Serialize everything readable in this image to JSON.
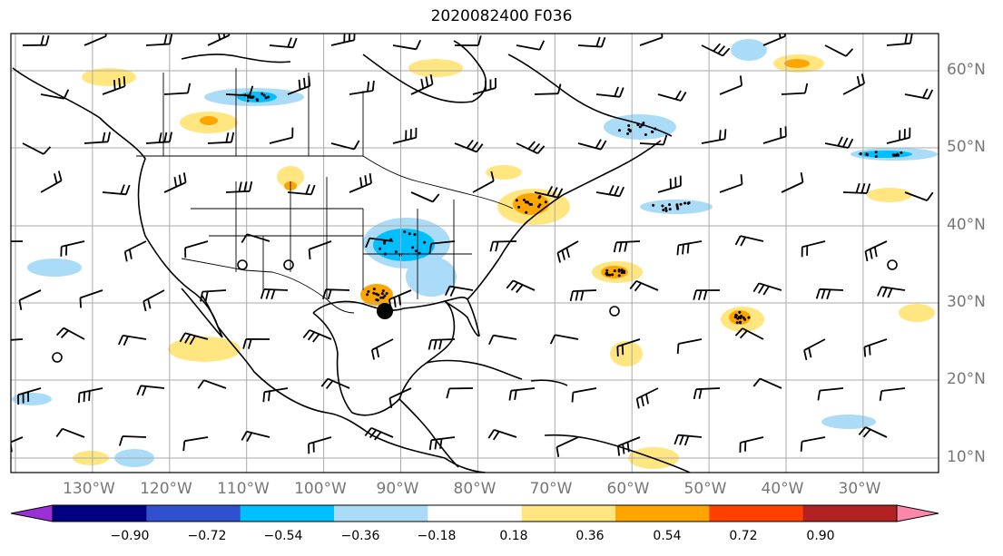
{
  "title": "2020082400 F036",
  "lat_labels": [
    "60°N",
    "50°N",
    "40°N",
    "30°N",
    "20°N",
    "10°N"
  ],
  "lon_labels": [
    "130°W",
    "120°W",
    "110°W",
    "100°W",
    "90°W",
    "80°W",
    "70°W",
    "60°W",
    "50°W",
    "40°W",
    "30°W"
  ],
  "colorbar": {
    "ticks": [
      "−0.90",
      "−0.72",
      "−0.54",
      "−0.36",
      "−0.18",
      "0.18",
      "0.36",
      "0.54",
      "0.72",
      "0.90"
    ],
    "colors": [
      "#9b30d9",
      "#000080",
      "#3050d0",
      "#00bfff",
      "#aadcf8",
      "#ffffff",
      "#ffe680",
      "#ffa500",
      "#ff4000",
      "#b22222",
      "#ff88aa"
    ]
  },
  "map": {
    "extent_lon": [
      -135,
      -20
    ],
    "extent_lat": [
      8,
      65
    ],
    "storm_marker_lon": -90.5,
    "storm_marker_lat": 29
  }
}
